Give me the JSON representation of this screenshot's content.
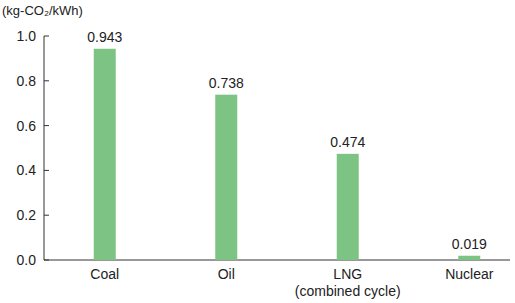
{
  "chart_data": {
    "type": "bar",
    "y_label": "(kg-CO₂/kWh)",
    "categories": [
      "Coal",
      "Oil",
      "LNG\n(combined cycle)",
      "Nuclear"
    ],
    "values": [
      0.943,
      0.738,
      0.474,
      0.019
    ],
    "color": "#7dc383",
    "ylim": [
      0,
      1
    ],
    "yticks": [
      {
        "value": 0,
        "label": "0.0"
      },
      0.2,
      0.4,
      0.6,
      0.8,
      {
        "value": 1,
        "label": "1.0"
      }
    ],
    "grid": false,
    "data_labels": true
  }
}
